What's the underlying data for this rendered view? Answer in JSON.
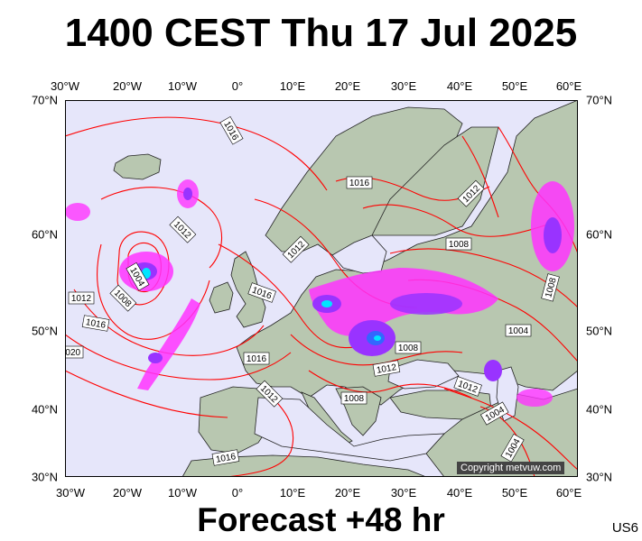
{
  "title": "1400 CEST Thu 17 Jul 2025",
  "footer": "Forecast +48 hr",
  "model": "US6",
  "copyright": "Copyright metvuw.com",
  "lon_labels": [
    "30°W",
    "20°W",
    "10°W",
    "0°",
    "10°E",
    "20°E",
    "30°E",
    "40°E",
    "50°E",
    "60°E"
  ],
  "lat_labels": [
    "70°N",
    "60°N",
    "50°N",
    "40°N",
    "30°N"
  ],
  "isobar_labels": [
    "1016",
    "1016",
    "1012",
    "1012",
    "1004",
    "1008",
    "1012",
    "1016",
    "1020",
    "1016",
    "1012",
    "1016",
    "1012",
    "1008",
    "1008",
    "1004",
    "1012",
    "1008",
    "1012",
    "1004",
    "1004",
    "1008",
    "1016"
  ],
  "colors": {
    "sea": "#e6e6fa",
    "land": "#b8c7b0",
    "isobar": "#ff0000",
    "rain_magenta": "#ff33ff",
    "rain_purple": "#9933ff",
    "rain_blue": "#3366ff",
    "rain_cyan": "#00e5ff"
  }
}
